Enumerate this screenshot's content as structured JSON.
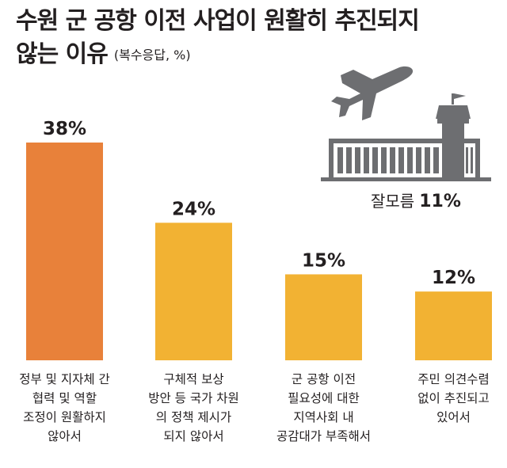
{
  "title_line1": "수원 군 공항 이전 사업이 원활히 추진되지",
  "title_line2": "않는 이유",
  "subtitle": "(복수응답, %)",
  "chart_data": {
    "type": "bar",
    "title": "수원 군 공항 이전 사업이 원활히 추진되지 않는 이유",
    "subtitle": "(복수응답, %)",
    "ylim": [
      0,
      38
    ],
    "grid": false,
    "categories": [
      [
        "정부 및 지자체 간",
        "협력 및 역할",
        "조정이 원활하지",
        "않아서"
      ],
      [
        "구체적 보상",
        "방안 등 국가 차원",
        "의 정책 제시가",
        "되지 않아서"
      ],
      [
        "군 공항 이전",
        "필요성에 대한",
        "지역사회 내",
        "공감대가 부족해서"
      ],
      [
        "주민 의견수렴",
        "없이 추진되고",
        "있어서"
      ]
    ],
    "values": [
      38,
      24,
      15,
      12
    ],
    "value_labels": [
      "38%",
      "24%",
      "15%",
      "12%"
    ],
    "colors": [
      "#e8813a",
      "#f2b233",
      "#f2b233",
      "#f2b233"
    ]
  },
  "dont_know": {
    "label": "잘모름",
    "value": "11%"
  },
  "icon": "airport-plane-icon",
  "colors": {
    "highlight": "#e8813a",
    "bar": "#f2b233",
    "icon": "#6d6e71"
  }
}
